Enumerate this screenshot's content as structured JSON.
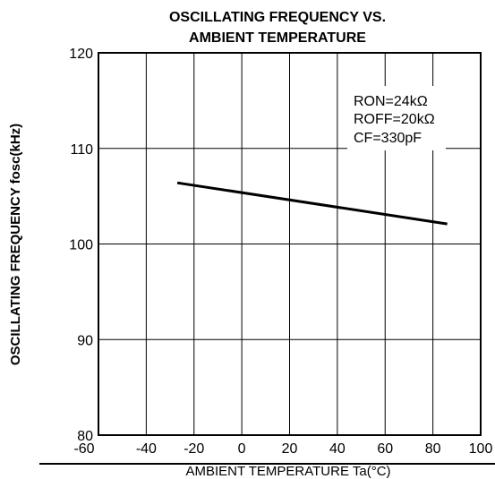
{
  "chart_data": {
    "type": "line",
    "title_line1": "OSCILLATING FREQUENCY VS.",
    "title_line2": "AMBIENT TEMPERATURE",
    "ylabel": "OSCILLATING FREQUENCY fosc(kHz)",
    "xlabel": "AMBIENT TEMPERATURE Ta(°C)",
    "xlim": [
      -60,
      100
    ],
    "ylim": [
      80,
      120
    ],
    "xticks": [
      -60,
      -40,
      -20,
      0,
      20,
      40,
      60,
      80,
      100
    ],
    "yticks": [
      80,
      90,
      100,
      110,
      120
    ],
    "grid": true,
    "line_color": "#000000",
    "series": [
      {
        "x": [
          -27,
          86
        ],
        "y": [
          106.4,
          102.1
        ]
      }
    ],
    "annotations": [
      "RON=24kΩ",
      "ROFF=20kΩ",
      "CF=330pF"
    ]
  }
}
